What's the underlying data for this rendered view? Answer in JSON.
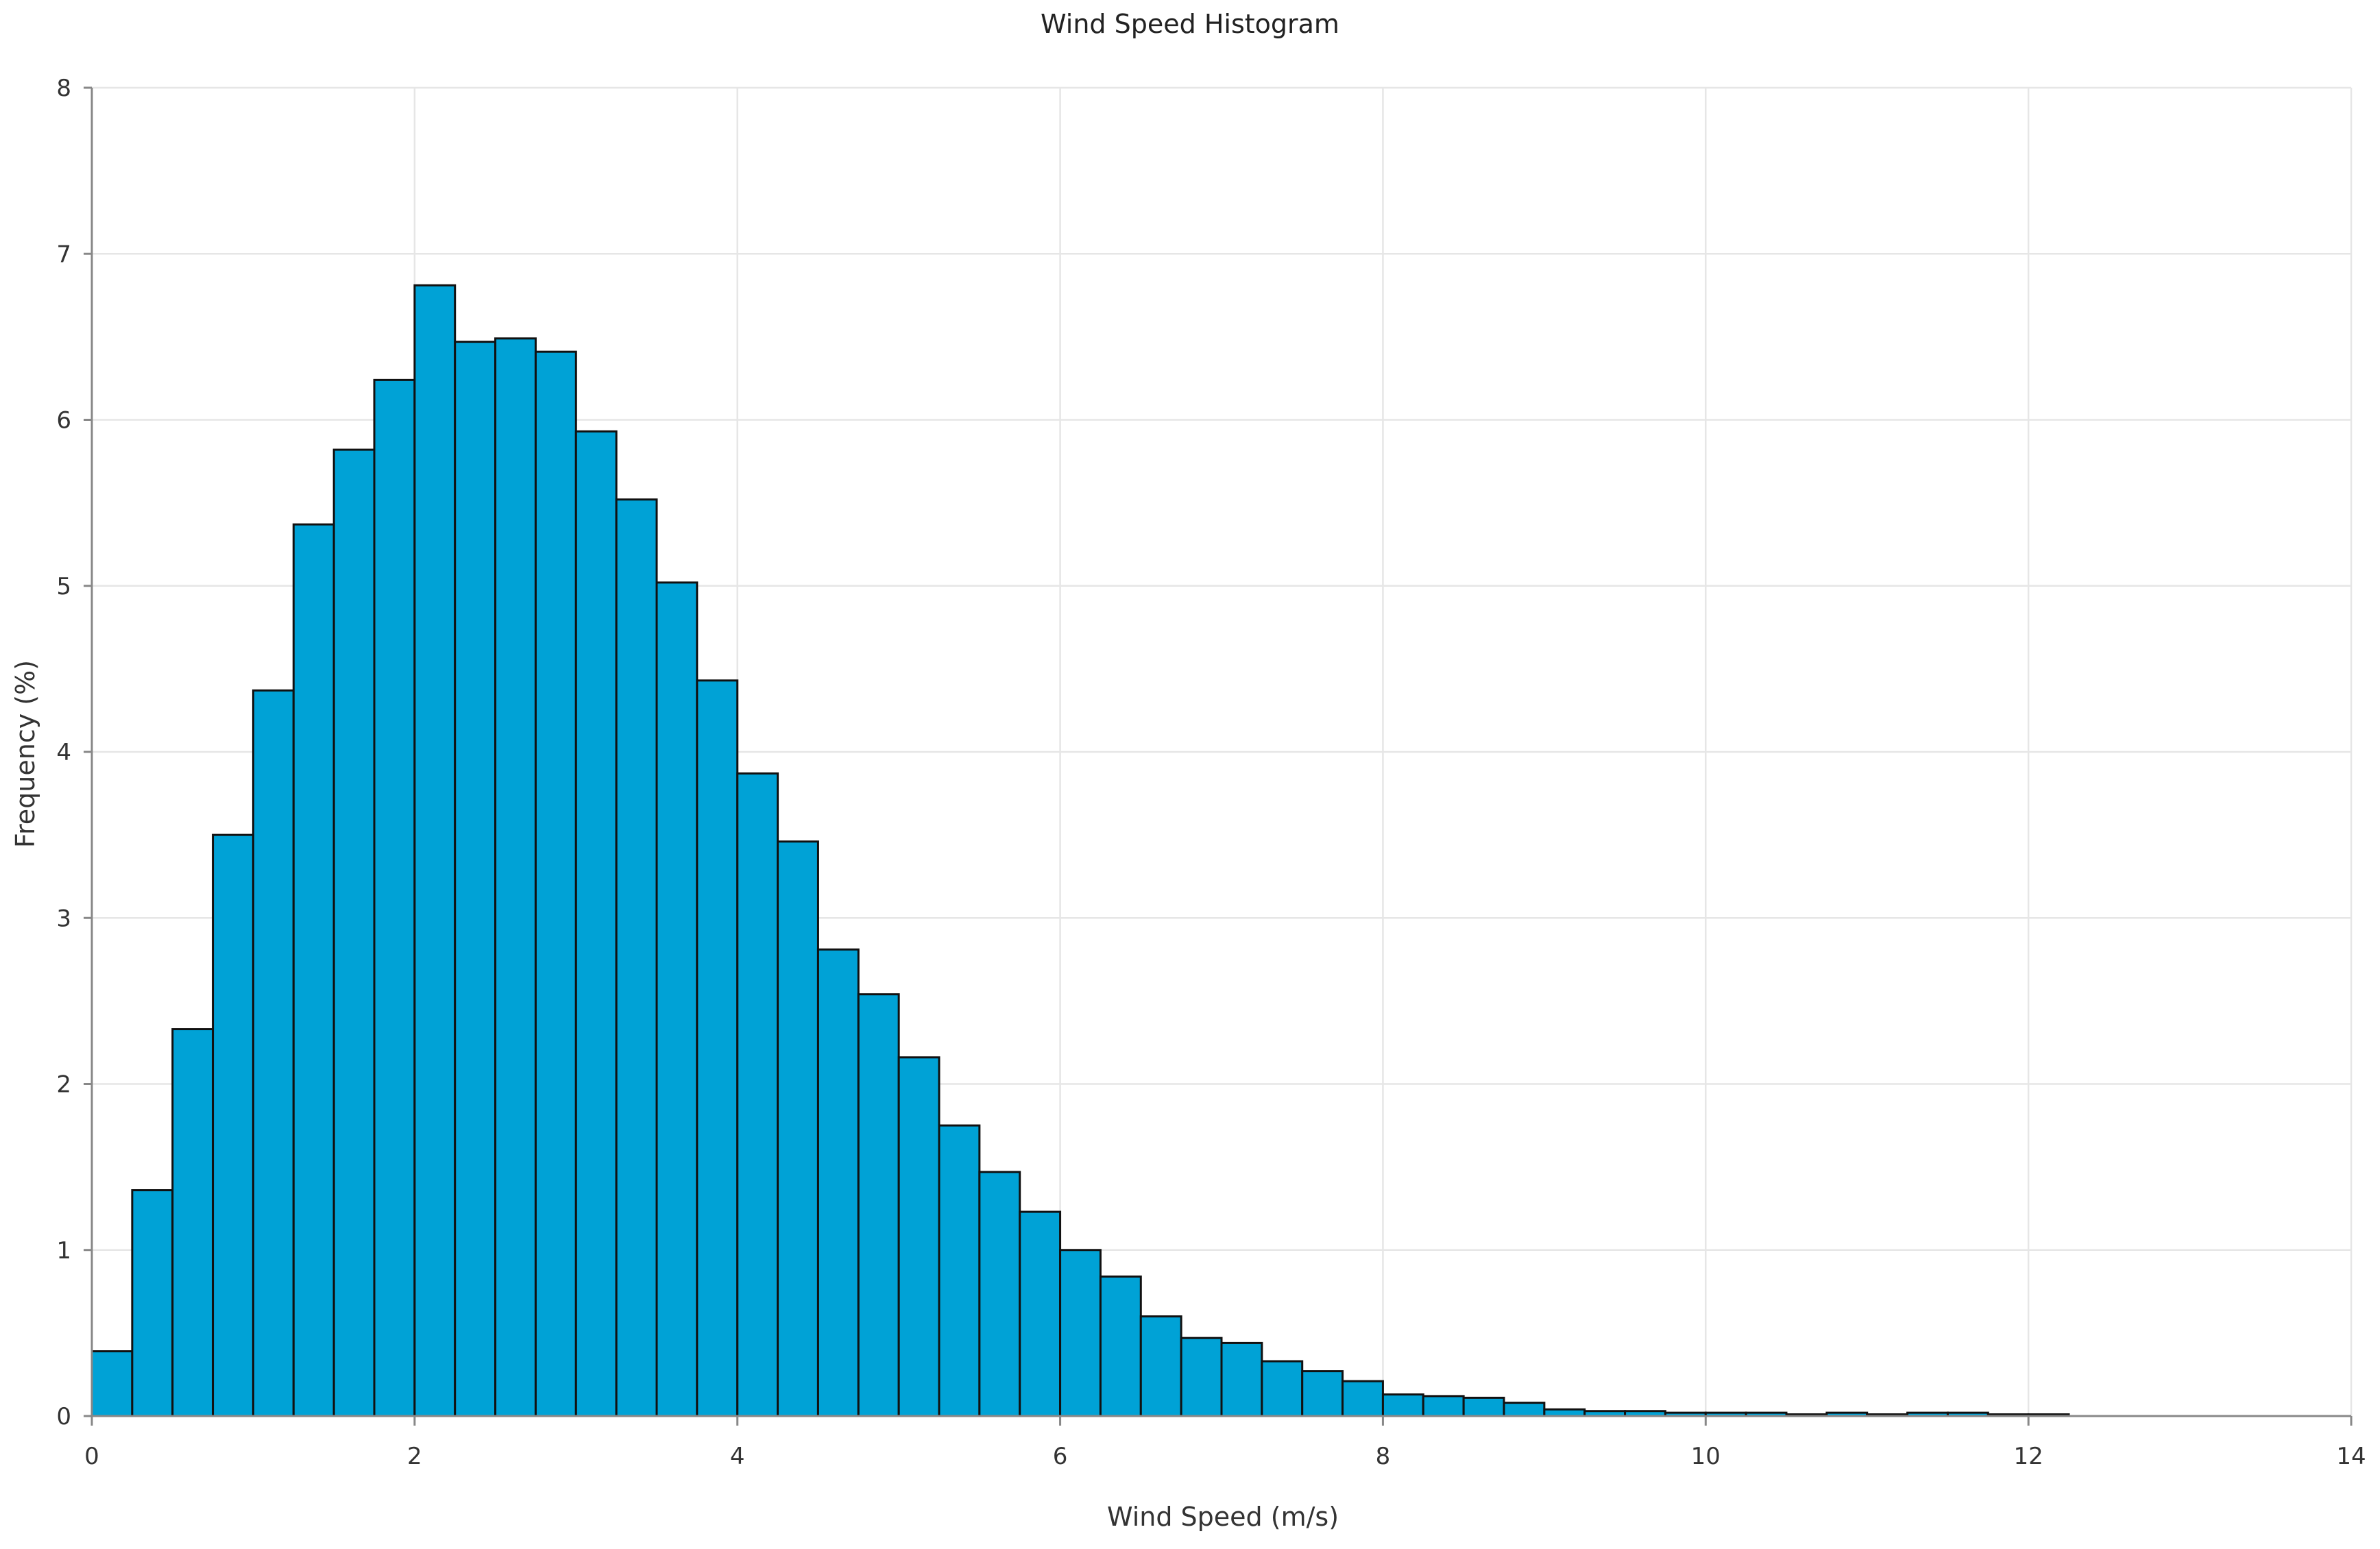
{
  "chart_data": {
    "type": "bar",
    "title": "Wind Speed Histogram",
    "xlabel": "Wind Speed (m/s)",
    "ylabel": "Frequency (%)",
    "xlim": [
      0,
      14
    ],
    "ylim": [
      0,
      8
    ],
    "xticks": [
      0,
      2,
      4,
      6,
      8,
      10,
      12,
      14
    ],
    "yticks": [
      0,
      1,
      2,
      3,
      4,
      5,
      6,
      7,
      8
    ],
    "grid": true,
    "bin_width": 0.25,
    "bin_starts": [
      0,
      0.25,
      0.5,
      0.75,
      1,
      1.25,
      1.5,
      1.75,
      2,
      2.25,
      2.5,
      2.75,
      3,
      3.25,
      3.5,
      3.75,
      4,
      4.25,
      4.5,
      4.75,
      5,
      5.25,
      5.5,
      5.75,
      6,
      6.25,
      6.5,
      6.75,
      7,
      7.25,
      7.5,
      7.75,
      8,
      8.25,
      8.5,
      8.75,
      9,
      9.25,
      9.5,
      9.75,
      10,
      10.25,
      10.5,
      10.75,
      11,
      11.25,
      11.5,
      11.75,
      12
    ],
    "values": [
      0.39,
      1.36,
      2.33,
      3.5,
      4.37,
      5.37,
      5.82,
      6.24,
      6.81,
      6.47,
      6.49,
      6.41,
      5.93,
      5.52,
      5.02,
      4.43,
      3.87,
      3.46,
      2.81,
      2.54,
      2.16,
      1.75,
      1.47,
      1.23,
      1.0,
      0.84,
      0.6,
      0.47,
      0.44,
      0.33,
      0.27,
      0.21,
      0.13,
      0.12,
      0.11,
      0.08,
      0.04,
      0.03,
      0.03,
      0.02,
      0.02,
      0.02,
      0.01,
      0.02,
      0.01,
      0.02,
      0.02,
      0.01,
      0.01
    ],
    "bar_color": "#00a2d6",
    "bar_edge_color": "#111111"
  }
}
